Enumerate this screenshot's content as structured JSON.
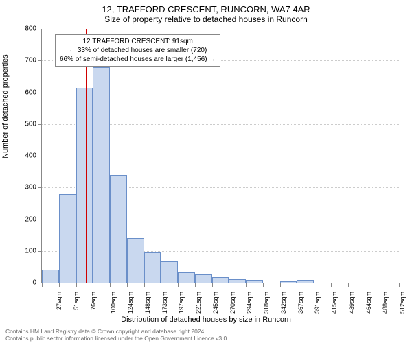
{
  "title": "12, TRAFFORD CRESCENT, RUNCORN, WA7 4AR",
  "subtitle": "Size of property relative to detached houses in Runcorn",
  "y_axis_label": "Number of detached properties",
  "x_axis_label": "Distribution of detached houses by size in Runcorn",
  "chart": {
    "type": "histogram",
    "ylim": [
      0,
      800
    ],
    "ytick_step": 100,
    "categories": [
      "27sqm",
      "51sqm",
      "76sqm",
      "100sqm",
      "124sqm",
      "148sqm",
      "173sqm",
      "197sqm",
      "221sqm",
      "245sqm",
      "270sqm",
      "294sqm",
      "318sqm",
      "342sqm",
      "367sqm",
      "391sqm",
      "415sqm",
      "439sqm",
      "464sqm",
      "488sqm",
      "512sqm"
    ],
    "values": [
      42,
      278,
      615,
      680,
      340,
      140,
      95,
      68,
      32,
      25,
      18,
      10,
      8,
      0,
      5,
      8,
      0,
      0,
      0,
      0,
      0
    ],
    "bar_fill": "#c9d8ef",
    "bar_stroke": "#6a8fc9",
    "grid_color": "#cccccc",
    "axis_color": "#888888",
    "marker_line_color": "#d00000",
    "marker_position_index": 2.6,
    "background": "#ffffff"
  },
  "annotation": {
    "line1": "12 TRAFFORD CRESCENT: 91sqm",
    "line2": "← 33% of detached houses are smaller (720)",
    "line3": "66% of semi-detached houses are larger (1,456) →"
  },
  "footer": {
    "line1": "Contains HM Land Registry data © Crown copyright and database right 2024.",
    "line2": "Contains public sector information licensed under the Open Government Licence v3.0."
  }
}
